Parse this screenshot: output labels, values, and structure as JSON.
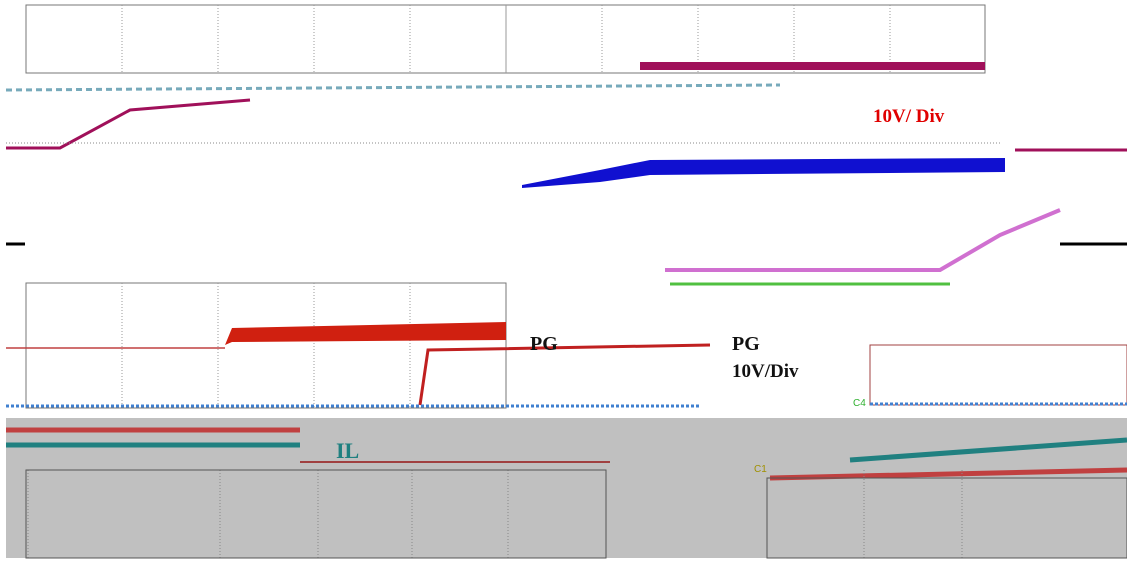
{
  "top_panel": {
    "scale_label": "10V/ Div"
  },
  "bottom_panel": {
    "signal_label": "PG",
    "pg_label": "PG",
    "scale_label": "10V/Div",
    "current_label": "IL",
    "channel_4": "C4",
    "channel_1": "C1"
  }
}
